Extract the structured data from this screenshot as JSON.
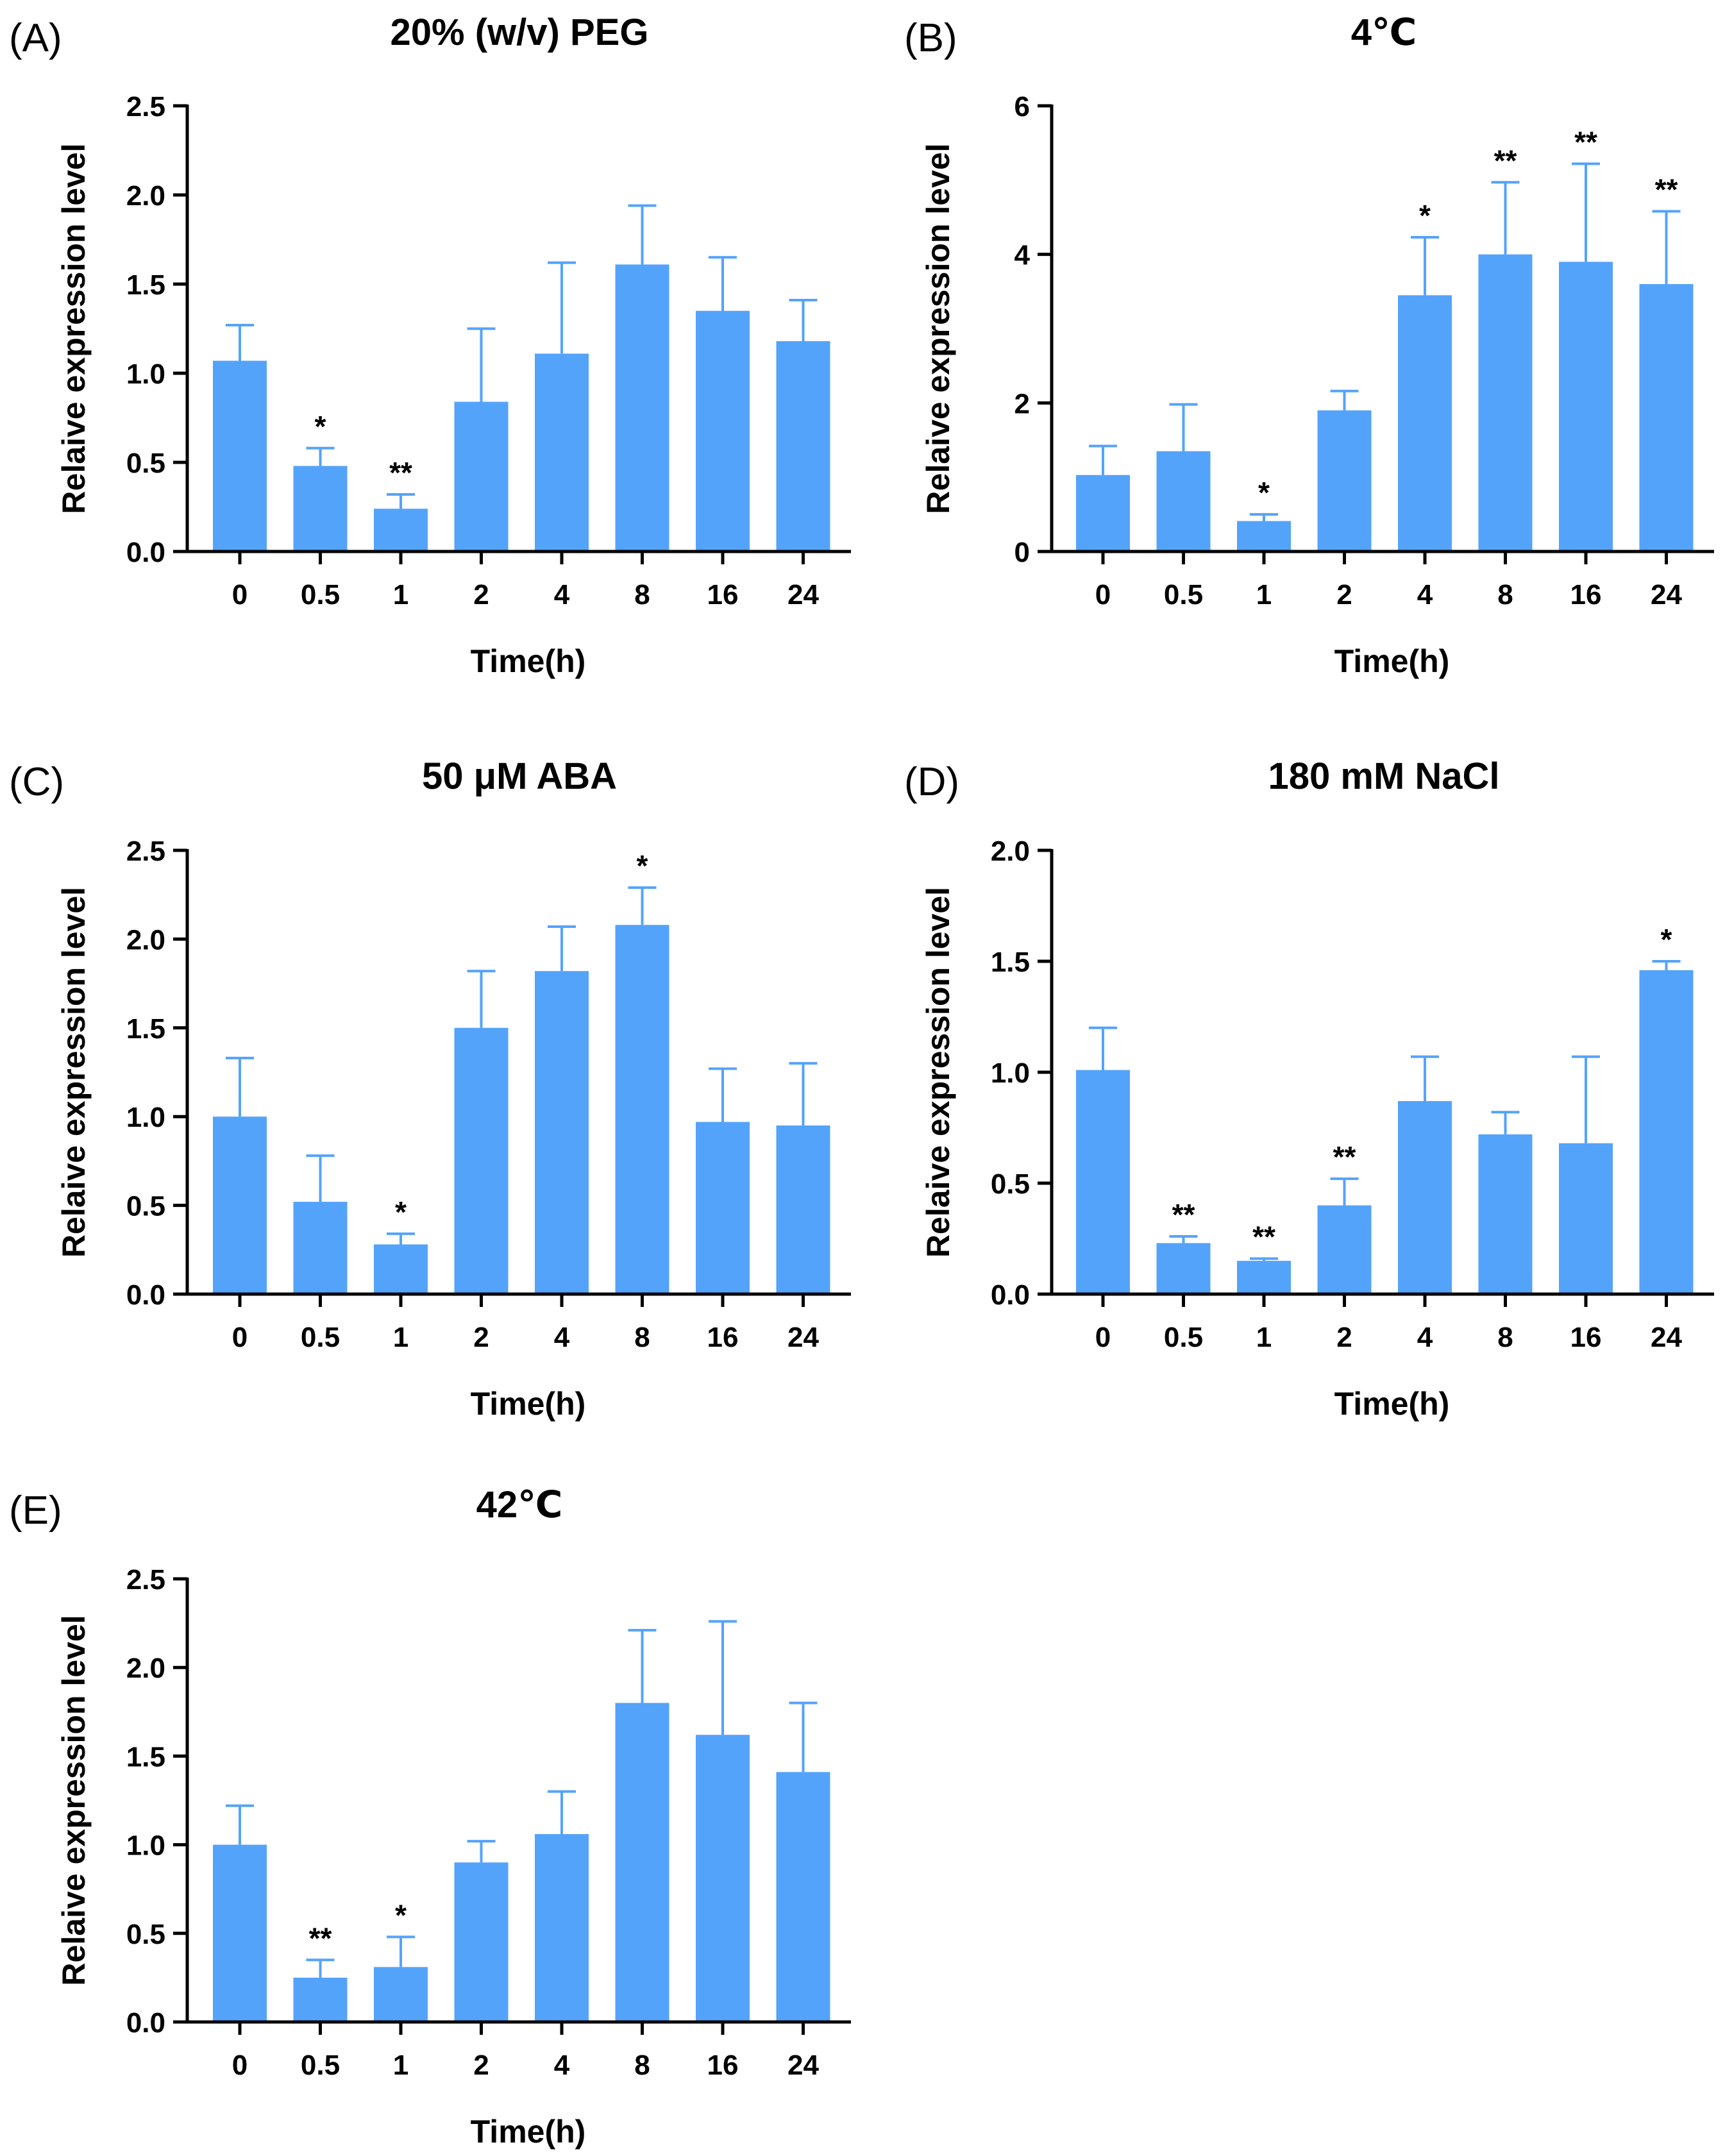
{
  "style": {
    "bar_color": "#54A3FB",
    "axis_color": "#000000",
    "text_color": "#000000"
  },
  "chart_data": [
    {
      "panel": "(A)",
      "type": "bar",
      "title": "20% (w/v) PEG",
      "xlabel": "Time(h)",
      "ylabel": "Relaive expression level",
      "categories": [
        "0",
        "0.5",
        "1",
        "2",
        "4",
        "8",
        "16",
        "24"
      ],
      "values": [
        1.07,
        0.48,
        0.24,
        0.84,
        1.11,
        1.61,
        1.35,
        1.18
      ],
      "errors": [
        0.2,
        0.1,
        0.08,
        0.41,
        0.51,
        0.33,
        0.3,
        0.23
      ],
      "significance": [
        "",
        "*",
        "**",
        "",
        "",
        "",
        "",
        ""
      ],
      "ylim": [
        0,
        2.5
      ],
      "yticks": [
        0.0,
        0.5,
        1.0,
        1.5,
        2.0,
        2.5
      ],
      "ytick_labels": [
        "0.0",
        "0.5",
        "1.0",
        "1.5",
        "2.0",
        "2.5"
      ]
    },
    {
      "panel": "(B)",
      "type": "bar",
      "title": "4℃",
      "xlabel": "Time(h)",
      "ylabel": "Relaive expression level",
      "categories": [
        "0",
        "0.5",
        "1",
        "2",
        "4",
        "8",
        "16",
        "24"
      ],
      "values": [
        1.03,
        1.35,
        0.41,
        1.9,
        3.45,
        4.0,
        3.9,
        3.6
      ],
      "errors": [
        0.39,
        0.63,
        0.09,
        0.26,
        0.78,
        0.97,
        1.32,
        0.98
      ],
      "significance": [
        "",
        "",
        "*",
        "",
        "*",
        "**",
        "**",
        "**"
      ],
      "ylim": [
        0,
        6
      ],
      "yticks": [
        0,
        2,
        4,
        6
      ],
      "ytick_labels": [
        "0",
        "2",
        "4",
        "6"
      ]
    },
    {
      "panel": "(C)",
      "type": "bar",
      "title": "50 μM ABA",
      "xlabel": "Time(h)",
      "ylabel": "Relaive expression level",
      "categories": [
        "0",
        "0.5",
        "1",
        "2",
        "4",
        "8",
        "16",
        "24"
      ],
      "values": [
        1.0,
        0.52,
        0.28,
        1.5,
        1.82,
        2.08,
        0.97,
        0.95
      ],
      "errors": [
        0.33,
        0.26,
        0.06,
        0.32,
        0.25,
        0.21,
        0.3,
        0.35
      ],
      "significance": [
        "",
        "",
        "*",
        "",
        "",
        "*",
        "",
        ""
      ],
      "ylim": [
        0,
        2.5
      ],
      "yticks": [
        0.0,
        0.5,
        1.0,
        1.5,
        2.0,
        2.5
      ],
      "ytick_labels": [
        "0.0",
        "0.5",
        "1.0",
        "1.5",
        "2.0",
        "2.5"
      ]
    },
    {
      "panel": "(D)",
      "type": "bar",
      "title": "180 mM NaCl",
      "xlabel": "Time(h)",
      "ylabel": "Relaive expression level",
      "categories": [
        "0",
        "0.5",
        "1",
        "2",
        "4",
        "8",
        "16",
        "24"
      ],
      "values": [
        1.01,
        0.23,
        0.15,
        0.4,
        0.87,
        0.72,
        0.68,
        1.46
      ],
      "errors": [
        0.19,
        0.03,
        0.01,
        0.12,
        0.2,
        0.1,
        0.39,
        0.04
      ],
      "significance": [
        "",
        "**",
        "**",
        "**",
        "",
        "",
        "",
        "*"
      ],
      "ylim": [
        0,
        2.0
      ],
      "yticks": [
        0.0,
        0.5,
        1.0,
        1.5,
        2.0
      ],
      "ytick_labels": [
        "0.0",
        "0.5",
        "1.0",
        "1.5",
        "2.0"
      ]
    },
    {
      "panel": "(E)",
      "type": "bar",
      "title": "42℃",
      "xlabel": "Time(h)",
      "ylabel": "Relaive expression level",
      "categories": [
        "0",
        "0.5",
        "1",
        "2",
        "4",
        "8",
        "16",
        "24"
      ],
      "values": [
        1.0,
        0.25,
        0.31,
        0.9,
        1.06,
        1.8,
        1.62,
        1.41
      ],
      "errors": [
        0.22,
        0.1,
        0.17,
        0.12,
        0.24,
        0.41,
        0.64,
        0.39
      ],
      "significance": [
        "",
        "**",
        "*",
        "",
        "",
        "",
        "",
        ""
      ],
      "ylim": [
        0,
        2.5
      ],
      "yticks": [
        0.0,
        0.5,
        1.0,
        1.5,
        2.0,
        2.5
      ],
      "ytick_labels": [
        "0.0",
        "0.5",
        "1.0",
        "1.5",
        "2.0",
        "2.5"
      ]
    }
  ]
}
